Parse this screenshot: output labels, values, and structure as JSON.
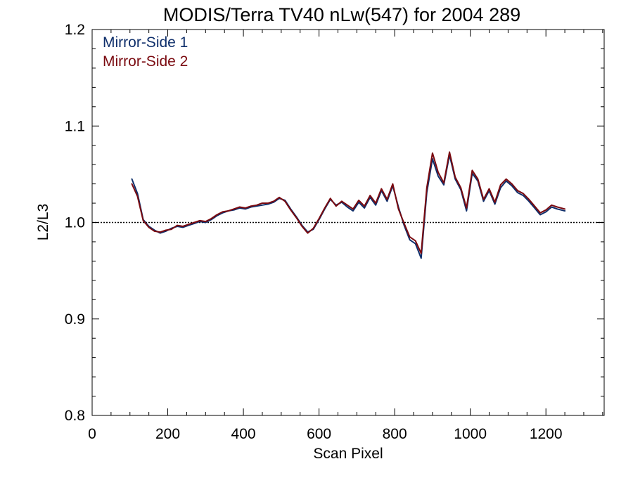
{
  "chart_data": {
    "type": "line",
    "title": "MODIS/Terra TV40 nLw(547) for 2004 289",
    "xlabel": "Scan Pixel",
    "ylabel": "L2/L3",
    "xlim": [
      0,
      1354
    ],
    "ylim": [
      0.8,
      1.2
    ],
    "x_ticks": [
      0,
      200,
      400,
      600,
      800,
      1000,
      1200
    ],
    "x_tick_labels": [
      "0",
      "200",
      "400",
      "600",
      "800",
      "1000",
      "1200"
    ],
    "y_ticks": [
      0.8,
      0.9,
      1.0,
      1.1,
      1.2
    ],
    "y_tick_labels": [
      "0.8",
      "0.9",
      "1.0",
      "1.1",
      "1.2"
    ],
    "reference_line": {
      "y": 1.0,
      "style": "dotted"
    },
    "legend_placement": "top-left",
    "grid": false,
    "x": [
      105,
      120,
      135,
      150,
      165,
      180,
      195,
      210,
      225,
      240,
      255,
      270,
      285,
      300,
      315,
      330,
      345,
      360,
      375,
      390,
      405,
      420,
      435,
      450,
      465,
      480,
      495,
      510,
      525,
      540,
      555,
      570,
      585,
      600,
      615,
      630,
      645,
      660,
      675,
      690,
      705,
      720,
      735,
      750,
      765,
      780,
      795,
      810,
      825,
      840,
      855,
      870,
      885,
      900,
      915,
      930,
      945,
      960,
      975,
      990,
      1005,
      1020,
      1035,
      1050,
      1065,
      1080,
      1095,
      1110,
      1125,
      1140,
      1155,
      1170,
      1185,
      1200,
      1215,
      1230,
      1250
    ],
    "series": [
      {
        "name": "Mirror-Side 1",
        "color": "#0f2f6b",
        "values": [
          1.045,
          1.03,
          1.003,
          0.996,
          0.992,
          0.989,
          0.991,
          0.994,
          0.996,
          0.995,
          0.997,
          0.999,
          1.001,
          1.0,
          1.003,
          1.007,
          1.01,
          1.012,
          1.013,
          1.015,
          1.014,
          1.016,
          1.017,
          1.018,
          1.019,
          1.021,
          1.025,
          1.023,
          1.014,
          1.006,
          0.997,
          0.99,
          0.993,
          1.003,
          1.014,
          1.024,
          1.018,
          1.021,
          1.016,
          1.012,
          1.021,
          1.015,
          1.026,
          1.018,
          1.033,
          1.022,
          1.038,
          1.016,
          0.997,
          0.982,
          0.978,
          0.963,
          1.031,
          1.066,
          1.048,
          1.039,
          1.07,
          1.045,
          1.034,
          1.012,
          1.051,
          1.043,
          1.022,
          1.033,
          1.019,
          1.036,
          1.043,
          1.038,
          1.031,
          1.028,
          1.022,
          1.015,
          1.008,
          1.011,
          1.016,
          1.014,
          1.012
        ]
      },
      {
        "name": "Mirror-Side 2",
        "color": "#7a0a10",
        "values": [
          1.04,
          1.027,
          1.002,
          0.995,
          0.991,
          0.99,
          0.992,
          0.993,
          0.997,
          0.996,
          0.998,
          1.0,
          1.002,
          1.001,
          1.004,
          1.008,
          1.011,
          1.012,
          1.014,
          1.016,
          1.015,
          1.017,
          1.018,
          1.02,
          1.02,
          1.022,
          1.026,
          1.022,
          1.013,
          1.005,
          0.996,
          0.989,
          0.994,
          1.004,
          1.015,
          1.025,
          1.017,
          1.022,
          1.018,
          1.014,
          1.023,
          1.017,
          1.028,
          1.02,
          1.035,
          1.024,
          1.04,
          1.014,
          0.999,
          0.985,
          0.981,
          0.968,
          1.036,
          1.072,
          1.052,
          1.041,
          1.073,
          1.047,
          1.036,
          1.015,
          1.054,
          1.045,
          1.024,
          1.035,
          1.021,
          1.039,
          1.045,
          1.04,
          1.033,
          1.03,
          1.024,
          1.017,
          1.01,
          1.013,
          1.018,
          1.016,
          1.014
        ]
      }
    ]
  }
}
